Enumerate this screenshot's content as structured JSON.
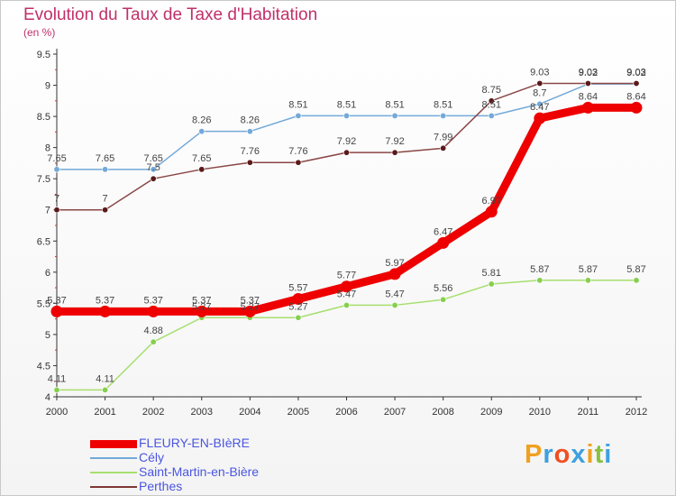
{
  "title": "Evolution du Taux de Taxe d'Habitation",
  "subtitle": "(en %)",
  "logo": {
    "letters": [
      "P",
      "r",
      "o",
      "x",
      "i",
      "t",
      "i"
    ],
    "colors": [
      "#f0a020",
      "#3ea0e0",
      "#f05020",
      "#3ea0e0",
      "#f0a020",
      "#88c040",
      "#3ea0e0"
    ]
  },
  "legend": [
    {
      "label": "FLEURY-EN-BIèRE",
      "color": "#ee0000"
    },
    {
      "label": "Cély",
      "color": "#74a9d8"
    },
    {
      "label": "Saint-Martin-en-Bière",
      "color": "#a6df6e"
    },
    {
      "label": "Perthes",
      "color": "#7c3636"
    }
  ],
  "chart_data": {
    "type": "line",
    "x": [
      2000,
      2001,
      2002,
      2003,
      2004,
      2005,
      2006,
      2007,
      2008,
      2009,
      2010,
      2011,
      2012
    ],
    "ylim": [
      4,
      9.5
    ],
    "yticks": [
      "4",
      "4.5",
      "5",
      "5.5",
      "6",
      "6.5",
      "7",
      "7.5",
      "8",
      "8.5",
      "9",
      "9.5"
    ],
    "grid": false,
    "series": [
      {
        "name": "Cély",
        "color": "#74a9d8",
        "marker": "#74a9d8",
        "emphasis": false,
        "values": [
          7.65,
          7.65,
          7.65,
          8.26,
          8.26,
          8.51,
          8.51,
          8.51,
          8.51,
          8.51,
          8.7,
          9.02,
          9.02
        ],
        "labels": [
          "7.65",
          "7.65",
          "7.65",
          "8.26",
          "8.26",
          "8.51",
          "8.51",
          "8.51",
          "8.51",
          "8.51",
          "8.7",
          "9.02",
          "9.02"
        ]
      },
      {
        "name": "Perthes",
        "color": "#8b4646",
        "marker": "#5a1a1a",
        "emphasis": false,
        "values": [
          7,
          7,
          7.5,
          7.65,
          7.76,
          7.76,
          7.92,
          7.92,
          7.99,
          8.75,
          9.03,
          9.03,
          9.03
        ],
        "labels": [
          "7",
          "7",
          "7.5",
          "7.65",
          "7.76",
          "7.76",
          "7.92",
          "7.92",
          "7.99",
          "8.75",
          "9.03",
          "9.03",
          "9.03"
        ]
      },
      {
        "name": "Saint-Martin-en-Bière",
        "color": "#a6df6e",
        "marker": "#86cf4e",
        "emphasis": false,
        "values": [
          4.11,
          4.11,
          4.88,
          5.27,
          5.27,
          5.27,
          5.47,
          5.47,
          5.56,
          5.81,
          5.87,
          5.87,
          5.87
        ],
        "labels": [
          "4.11",
          "4.11",
          "4.88",
          "5.27",
          "5.27",
          "5.27",
          "5.47",
          "5.47",
          "5.56",
          "5.81",
          "5.87",
          "5.87",
          "5.87"
        ]
      },
      {
        "name": "FLEURY-EN-BIèRE",
        "color": "#ee0000",
        "marker": "#ee0000",
        "emphasis": true,
        "values": [
          5.37,
          5.37,
          5.37,
          5.37,
          5.37,
          5.57,
          5.77,
          5.97,
          6.47,
          6.97,
          8.47,
          8.64,
          8.64
        ],
        "labels": [
          "5.37",
          "5.37",
          "5.37",
          "5.37",
          "5.37",
          "5.57",
          "5.77",
          "5.97",
          "6.47",
          "6.97",
          "8.47",
          "8.64",
          "8.64"
        ]
      }
    ]
  }
}
